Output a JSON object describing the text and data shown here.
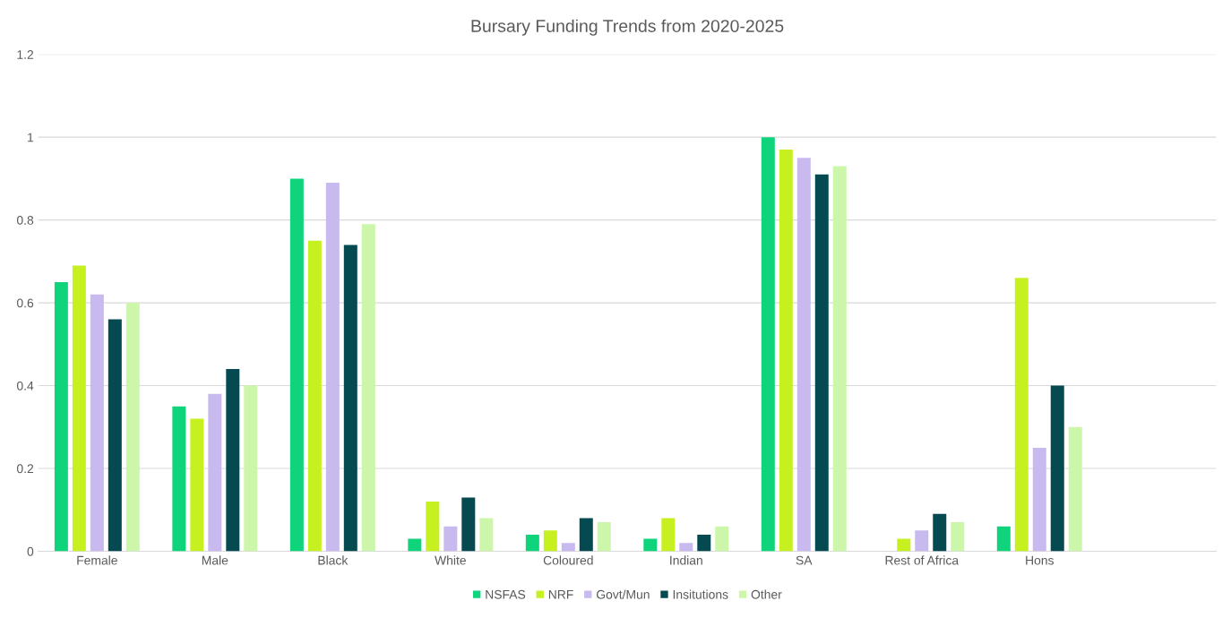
{
  "chart_data": {
    "type": "bar",
    "title": "Bursary Funding Trends from 2020-2025",
    "categories": [
      "Female",
      "Male",
      "Black",
      "White",
      "Coloured",
      "Indian",
      "SA",
      "Rest of Africa",
      "Hons",
      null
    ],
    "series": [
      {
        "name": "NSFAS",
        "color": "#10d47c",
        "values": [
          0.65,
          0.35,
          0.9,
          0.03,
          0.04,
          0.03,
          1.0,
          0,
          0.06,
          null
        ]
      },
      {
        "name": "NRF",
        "color": "#c6f01f",
        "values": [
          0.69,
          0.32,
          0.75,
          0.12,
          0.05,
          0.08,
          0.97,
          0.03,
          0.66,
          null
        ]
      },
      {
        "name": "Govt/Mun",
        "color": "#c8b9ee",
        "values": [
          0.62,
          0.38,
          0.89,
          0.06,
          0.02,
          0.02,
          0.95,
          0.05,
          0.25,
          null
        ]
      },
      {
        "name": "Insitutions",
        "color": "#044a50",
        "values": [
          0.56,
          0.44,
          0.74,
          0.13,
          0.08,
          0.04,
          0.91,
          0.09,
          0.4,
          null
        ]
      },
      {
        "name": "Other",
        "color": "#ccf7aa",
        "values": [
          0.6,
          0.4,
          0.79,
          0.08,
          0.07,
          0.06,
          0.93,
          0.07,
          0.3,
          null
        ]
      }
    ],
    "ylim": [
      0,
      1.2
    ],
    "yticks": [
      0,
      0.2,
      0.4,
      0.6,
      0.8,
      1,
      1.2
    ],
    "grid": "y",
    "legend": "bottom"
  }
}
